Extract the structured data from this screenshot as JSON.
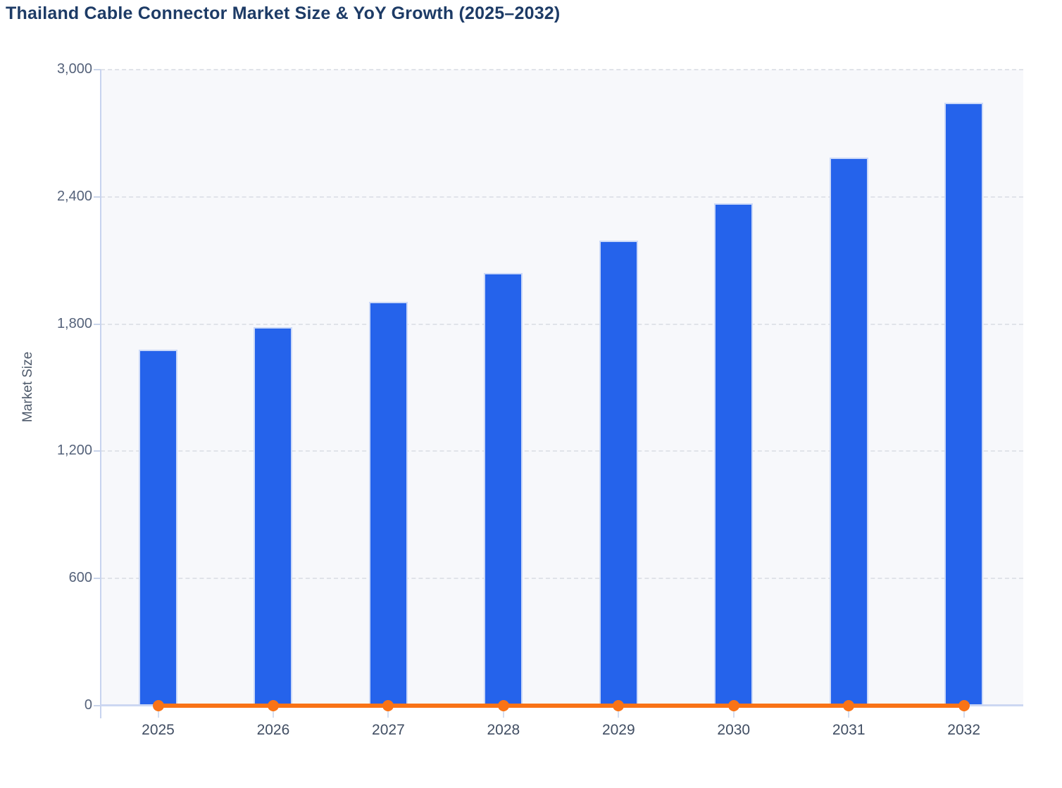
{
  "chart_data": {
    "type": "bar",
    "title": "Thailand Cable Connector Market Size & YoY Growth (2025–2032)",
    "categories": [
      "2025",
      "2026",
      "2027",
      "2028",
      "2029",
      "2030",
      "2031",
      "2032"
    ],
    "series": [
      {
        "name": "Market Size",
        "type": "bar",
        "color": "#2563eb",
        "values": [
          1680,
          1785,
          1905,
          2040,
          2195,
          2370,
          2585,
          2845
        ]
      },
      {
        "name": "YoY Growth",
        "type": "line",
        "color": "#f97316",
        "values": [
          0,
          0,
          0,
          0,
          0,
          0,
          0,
          0
        ]
      }
    ],
    "xlabel": "",
    "ylabel": "Market Size",
    "ylim": [
      0,
      3000
    ],
    "yticks": [
      0,
      600,
      1200,
      1800,
      2400,
      3000
    ],
    "ytick_labels": [
      "0",
      "600",
      "1,200",
      "1,800",
      "2,400",
      "3,000"
    ],
    "grid": "horizontal-dashed",
    "legend": "none"
  },
  "colors": {
    "bar": "#2563eb",
    "bar_border": "#cbd9f8",
    "line": "#f97316",
    "plot_bg": "#f7f8fb",
    "grid": "#e0e3e9",
    "axis": "#c7d3ef",
    "title": "#1d3b66"
  }
}
